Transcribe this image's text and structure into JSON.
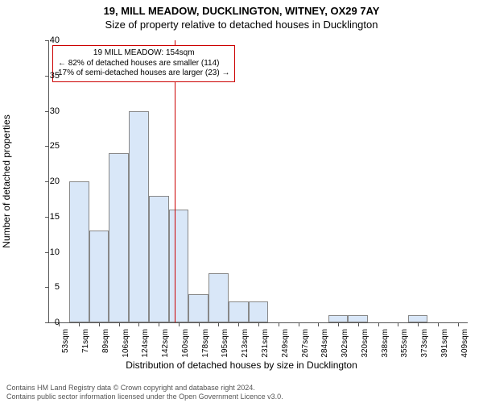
{
  "title": "19, MILL MEADOW, DUCKLINGTON, WITNEY, OX29 7AY",
  "subtitle": "Size of property relative to detached houses in Ducklington",
  "ylabel": "Number of detached properties",
  "xlabel": "Distribution of detached houses by size in Ducklington",
  "chart": {
    "type": "bar",
    "ylim": [
      0,
      40
    ],
    "ytick_step": 5,
    "categories": [
      "53sqm",
      "71sqm",
      "89sqm",
      "106sqm",
      "124sqm",
      "142sqm",
      "160sqm",
      "178sqm",
      "195sqm",
      "213sqm",
      "231sqm",
      "249sqm",
      "267sqm",
      "284sqm",
      "302sqm",
      "320sqm",
      "338sqm",
      "355sqm",
      "373sqm",
      "391sqm",
      "409sqm"
    ],
    "values": [
      0,
      20,
      13,
      24,
      30,
      18,
      16,
      4,
      7,
      3,
      3,
      0,
      0,
      0,
      1,
      1,
      0,
      0,
      1,
      0,
      0
    ],
    "bar_fill": "#d9e7f8",
    "bar_stroke": "#888888",
    "background_color": "#ffffff",
    "axis_color": "#555555",
    "marker": {
      "x_category_index": 5.8,
      "line_color": "#cc0000",
      "box_border": "#cc0000",
      "lines": [
        "19 MILL MEADOW: 154sqm",
        "← 82% of detached houses are smaller (114)",
        "17% of semi-detached houses are larger (23) →"
      ]
    }
  },
  "footnote_line1": "Contains HM Land Registry data © Crown copyright and database right 2024.",
  "footnote_line2": "Contains public sector information licensed under the Open Government Licence v3.0."
}
